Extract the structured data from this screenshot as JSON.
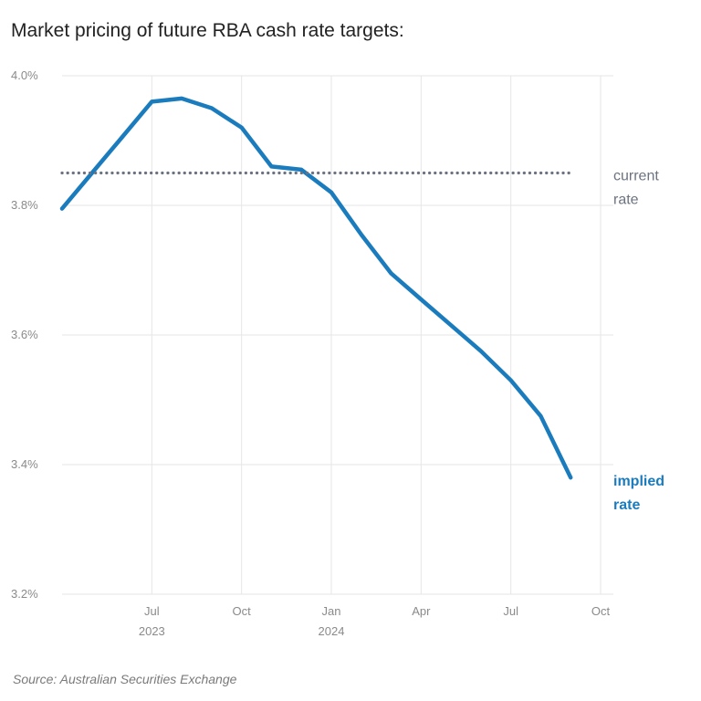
{
  "title": "Market pricing of future RBA cash rate targets:",
  "source": "Source: Australian Securities Exchange",
  "colors": {
    "implied": "#1a7bbd",
    "current": "#6b7280",
    "grid": "#e6e6e6",
    "tick": "#8a8a8a"
  },
  "chart_data": {
    "type": "line",
    "y_ticks": [
      "3.2%",
      "3.4%",
      "3.6%",
      "3.8%",
      "4.0%"
    ],
    "ylim": [
      3.2,
      4.0
    ],
    "x_ticks": [
      {
        "month": "Jul",
        "year": "2023"
      },
      {
        "month": "Oct",
        "year": ""
      },
      {
        "month": "Jan",
        "year": "2024"
      },
      {
        "month": "Apr",
        "year": ""
      },
      {
        "month": "Jul",
        "year": ""
      },
      {
        "month": "Oct",
        "year": ""
      }
    ],
    "xlim": [
      "2023-04",
      "2024-10"
    ],
    "grid": true,
    "series": [
      {
        "label_lines": [
          "implied",
          "rate"
        ],
        "style": "solid",
        "points": [
          {
            "x": "2023-04",
            "y": 3.795
          },
          {
            "x": "2023-05",
            "y": 3.85
          },
          {
            "x": "2023-06",
            "y": 3.905
          },
          {
            "x": "2023-07",
            "y": 3.96
          },
          {
            "x": "2023-08",
            "y": 3.965
          },
          {
            "x": "2023-09",
            "y": 3.95
          },
          {
            "x": "2023-10",
            "y": 3.92
          },
          {
            "x": "2023-11",
            "y": 3.86
          },
          {
            "x": "2023-12",
            "y": 3.855
          },
          {
            "x": "2024-01",
            "y": 3.82
          },
          {
            "x": "2024-02",
            "y": 3.755
          },
          {
            "x": "2024-03",
            "y": 3.695
          },
          {
            "x": "2024-04",
            "y": 3.655
          },
          {
            "x": "2024-05",
            "y": 3.615
          },
          {
            "x": "2024-06",
            "y": 3.575
          },
          {
            "x": "2024-07",
            "y": 3.53
          },
          {
            "x": "2024-08",
            "y": 3.475
          },
          {
            "x": "2024-09",
            "y": 3.38
          }
        ]
      },
      {
        "label_lines": [
          "current",
          "rate"
        ],
        "style": "dotted",
        "points": [
          {
            "x": "2023-04",
            "y": 3.85
          },
          {
            "x": "2024-09",
            "y": 3.85
          }
        ]
      }
    ]
  }
}
